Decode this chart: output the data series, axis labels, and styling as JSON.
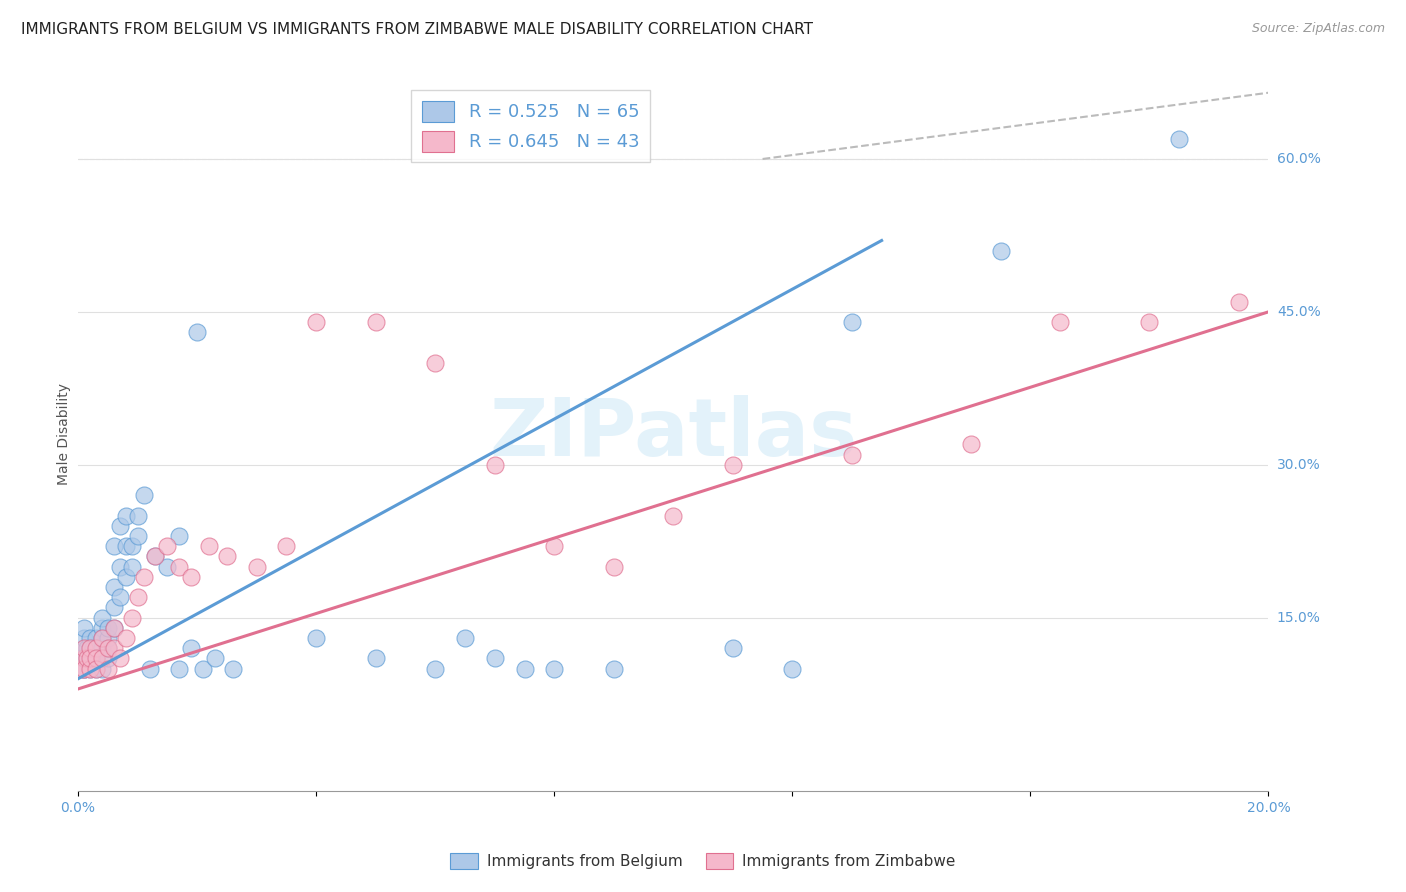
{
  "title": "IMMIGRANTS FROM BELGIUM VS IMMIGRANTS FROM ZIMBABWE MALE DISABILITY CORRELATION CHART",
  "source": "Source: ZipAtlas.com",
  "ylabel": "Male Disability",
  "legend_label1": "Immigrants from Belgium",
  "legend_label2": "Immigrants from Zimbabwe",
  "R1": 0.525,
  "N1": 65,
  "R2": 0.645,
  "N2": 43,
  "color_belgium": "#adc8e8",
  "color_zimbabwe": "#f5b8cb",
  "line_color_belgium": "#5b9bd5",
  "line_color_zimbabwe": "#e07090",
  "xlim": [
    0.0,
    0.2
  ],
  "ylim": [
    -0.02,
    0.68
  ],
  "ytick_labels_right": [
    0.15,
    0.3,
    0.45,
    0.6
  ],
  "bel_line": [
    0.0,
    0.065,
    0.1355,
    0.52
  ],
  "zim_line": [
    0.0,
    0.2,
    0.08,
    0.45
  ],
  "ref_line": [
    [
      0.115,
      0.2
    ],
    [
      0.6,
      0.66
    ]
  ],
  "background_color": "#ffffff",
  "grid_color": "#e0e0e0",
  "title_fontsize": 11,
  "axis_label_fontsize": 10,
  "tick_fontsize": 10,
  "belgium_x": [
    0.0005,
    0.001,
    0.001,
    0.001,
    0.001,
    0.001,
    0.0015,
    0.0015,
    0.002,
    0.002,
    0.002,
    0.002,
    0.0025,
    0.003,
    0.003,
    0.003,
    0.003,
    0.003,
    0.004,
    0.004,
    0.004,
    0.004,
    0.004,
    0.005,
    0.005,
    0.005,
    0.005,
    0.006,
    0.006,
    0.006,
    0.006,
    0.007,
    0.007,
    0.007,
    0.008,
    0.008,
    0.008,
    0.009,
    0.009,
    0.01,
    0.01,
    0.011,
    0.012,
    0.013,
    0.015,
    0.017,
    0.017,
    0.019,
    0.02,
    0.021,
    0.023,
    0.026,
    0.04,
    0.05,
    0.06,
    0.065,
    0.07,
    0.075,
    0.08,
    0.09,
    0.11,
    0.12,
    0.13,
    0.155,
    0.185
  ],
  "belgium_y": [
    0.11,
    0.12,
    0.1,
    0.13,
    0.14,
    0.1,
    0.12,
    0.11,
    0.13,
    0.11,
    0.12,
    0.1,
    0.12,
    0.11,
    0.13,
    0.1,
    0.12,
    0.11,
    0.14,
    0.12,
    0.13,
    0.1,
    0.15,
    0.13,
    0.11,
    0.14,
    0.12,
    0.16,
    0.14,
    0.22,
    0.18,
    0.2,
    0.17,
    0.24,
    0.22,
    0.19,
    0.25,
    0.2,
    0.22,
    0.23,
    0.25,
    0.27,
    0.1,
    0.21,
    0.2,
    0.23,
    0.1,
    0.12,
    0.43,
    0.1,
    0.11,
    0.1,
    0.13,
    0.11,
    0.1,
    0.13,
    0.11,
    0.1,
    0.1,
    0.1,
    0.12,
    0.1,
    0.44,
    0.51,
    0.62
  ],
  "zimbabwe_x": [
    0.0005,
    0.001,
    0.001,
    0.001,
    0.0015,
    0.002,
    0.002,
    0.002,
    0.003,
    0.003,
    0.003,
    0.004,
    0.004,
    0.005,
    0.005,
    0.006,
    0.006,
    0.007,
    0.008,
    0.009,
    0.01,
    0.011,
    0.013,
    0.015,
    0.017,
    0.019,
    0.022,
    0.025,
    0.03,
    0.035,
    0.04,
    0.05,
    0.06,
    0.07,
    0.08,
    0.09,
    0.1,
    0.11,
    0.13,
    0.15,
    0.165,
    0.18,
    0.195
  ],
  "zimbabwe_y": [
    0.1,
    0.11,
    0.12,
    0.1,
    0.11,
    0.1,
    0.12,
    0.11,
    0.12,
    0.11,
    0.1,
    0.13,
    0.11,
    0.12,
    0.1,
    0.14,
    0.12,
    0.11,
    0.13,
    0.15,
    0.17,
    0.19,
    0.21,
    0.22,
    0.2,
    0.19,
    0.22,
    0.21,
    0.2,
    0.22,
    0.44,
    0.44,
    0.4,
    0.3,
    0.22,
    0.2,
    0.25,
    0.3,
    0.31,
    0.32,
    0.44,
    0.44,
    0.46
  ]
}
